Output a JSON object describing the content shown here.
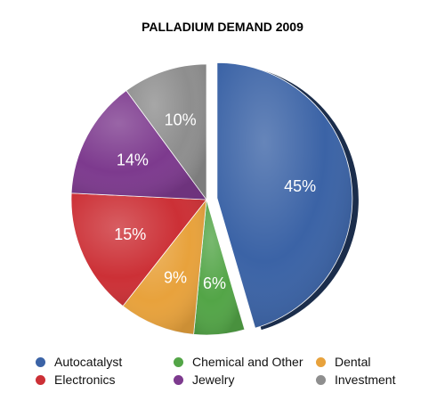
{
  "chart_data": {
    "type": "pie",
    "title": "PALLADIUM DEMAND 2009",
    "slices": [
      {
        "label": "Autocatalyst",
        "value": 45,
        "value_label": "45%",
        "color": "#3b63a6"
      },
      {
        "label": "Chemical and Other",
        "value": 6,
        "value_label": "6%",
        "color": "#53a547"
      },
      {
        "label": "Dental",
        "value": 9,
        "value_label": "9%",
        "color": "#e8a23c"
      },
      {
        "label": "Electronics",
        "value": 15,
        "value_label": "15%",
        "color": "#cc3036"
      },
      {
        "label": "Jewelry",
        "value": 14,
        "value_label": "14%",
        "color": "#7d3a8e"
      },
      {
        "label": "Investment",
        "value": 10,
        "value_label": "10%",
        "color": "#8e8e8e"
      }
    ],
    "exploded_slice": "Autocatalyst",
    "legend_position": "bottom"
  }
}
